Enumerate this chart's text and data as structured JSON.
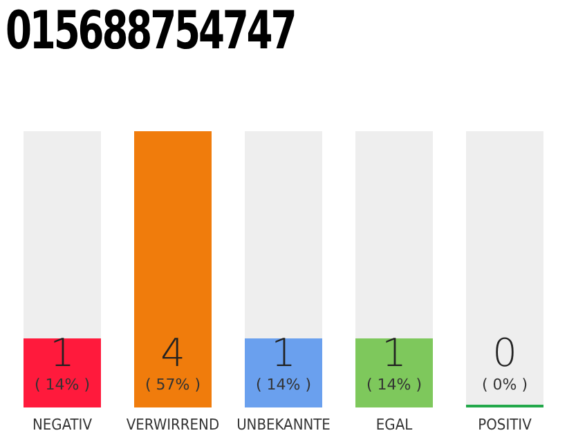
{
  "chart_data": {
    "type": "bar",
    "title": "015688754747",
    "categories": [
      "NEGATIV",
      "VERWIRREND",
      "UNBEKANNTE",
      "EGAL",
      "POSITIV"
    ],
    "values": [
      1,
      4,
      1,
      1,
      0
    ],
    "value_labels": [
      "1 ( 14% )",
      "4 ( 57% )",
      "1 ( 14% )",
      "1 ( 14% )",
      "0 ( 0% )"
    ],
    "colors": [
      "#ff1a3c",
      "#f07c0c",
      "#6aa0ee",
      "#7ec85c",
      "#22a84a"
    ]
  }
}
